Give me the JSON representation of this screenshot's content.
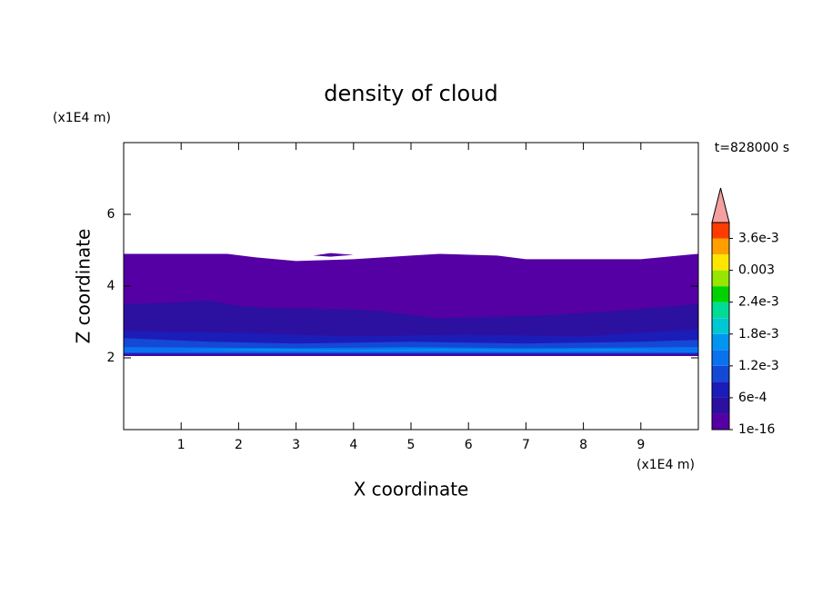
{
  "chart_data": {
    "type": "contour",
    "title": "density of cloud",
    "xlabel": "X coordinate",
    "ylabel": "Z coordinate",
    "x_unit": "(x1E4 m)",
    "y_unit": "(x1E4 m)",
    "annotation": "t=828000 s",
    "xlim": [
      0,
      10
    ],
    "ylim": [
      0,
      8
    ],
    "xticks": [
      1,
      2,
      3,
      4,
      5,
      6,
      7,
      8,
      9
    ],
    "yticks": [
      2,
      4,
      6
    ],
    "levels": [
      1e-16,
      0.0003,
      0.0006,
      0.0009,
      0.0012,
      0.0015,
      0.0018,
      0.0021,
      0.0024,
      0.0027,
      0.003,
      0.0033,
      0.0036,
      0.0039
    ],
    "colors": [
      "#5500a5",
      "#2c10a0",
      "#1c1cb8",
      "#1448d6",
      "#0a72f0",
      "#0096f0",
      "#00c8d2",
      "#00dc96",
      "#00d200",
      "#96e600",
      "#ffe600",
      "#ffa000",
      "#ff3c00"
    ],
    "extend_color": "#f4a0a0",
    "colorbar_ticks": [
      1e-16,
      {
        "value": 0.0006,
        "label": "6e-4"
      },
      {
        "value": 0.0012,
        "label": "1.2e-3"
      },
      {
        "value": 0.0018,
        "label": "1.8e-3"
      },
      {
        "value": 0.0024,
        "label": "2.4e-3"
      },
      0.003,
      {
        "value": 0.0036,
        "label": "3.6e-3"
      }
    ],
    "regions": [
      {
        "level": 1e-16,
        "x": [
          0,
          0,
          1.8,
          2.3,
          3,
          4,
          5,
          5.5,
          6.5,
          7,
          9,
          10,
          10
        ],
        "z": [
          2.05,
          4.9,
          4.9,
          4.8,
          4.7,
          4.75,
          4.85,
          4.9,
          4.85,
          4.75,
          4.75,
          4.9,
          2.05
        ]
      },
      {
        "level": 1e-16,
        "x": [
          3.3,
          3.6,
          4,
          3.6
        ],
        "z": [
          4.85,
          4.92,
          4.87,
          4.82
        ]
      },
      {
        "level": 0.0003,
        "x": [
          0,
          0,
          1,
          1.5,
          2,
          2.5,
          4,
          4.5,
          5.5,
          6.5,
          7.5,
          8.5,
          10,
          10
        ],
        "z": [
          2.08,
          3.5,
          3.55,
          3.6,
          3.45,
          3.4,
          3.35,
          3.3,
          3.1,
          3.15,
          3.2,
          3.3,
          3.5,
          2.08
        ]
      },
      {
        "level": 0.0006,
        "x": [
          0,
          0,
          2,
          4,
          6,
          8,
          10,
          10
        ],
        "z": [
          2.1,
          2.75,
          2.7,
          2.6,
          2.65,
          2.6,
          2.8,
          2.1
        ]
      },
      {
        "level": 0.0009,
        "x": [
          0,
          0,
          1.5,
          3,
          5,
          7,
          9,
          10,
          10
        ],
        "z": [
          2.12,
          2.55,
          2.45,
          2.4,
          2.45,
          2.4,
          2.45,
          2.5,
          2.12
        ]
      },
      {
        "level": 0.0012,
        "x": [
          0,
          0,
          3,
          5,
          7,
          10,
          10
        ],
        "z": [
          2.15,
          2.3,
          2.27,
          2.3,
          2.27,
          2.3,
          2.15
        ]
      },
      {
        "level": 0.0015,
        "x": [
          1,
          2.5,
          4,
          5.5,
          7,
          8.5,
          9.5,
          8.5,
          7,
          5.5,
          4,
          2.5
        ],
        "z": [
          2.22,
          2.25,
          2.22,
          2.25,
          2.22,
          2.24,
          2.22,
          2.2,
          2.19,
          2.2,
          2.19,
          2.2
        ]
      }
    ]
  }
}
